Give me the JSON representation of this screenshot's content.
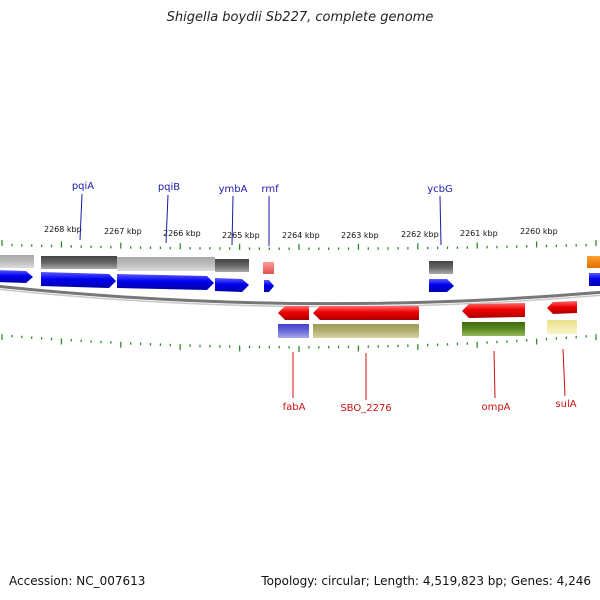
{
  "title": "Shigella boydii Sb227, complete genome",
  "footer": {
    "accession": "Accession: NC_007613",
    "summary": "Topology: circular; Length: 4,519,823 bp; Genes: 4,246"
  },
  "colors": {
    "cds_blue": "#0000ee",
    "cds_red": "#ee0000",
    "label_blue": "#1a1aaa",
    "label_red": "#cc1111",
    "tick_green": "#2e8b2e",
    "backbone": "#777777"
  },
  "scale": {
    "labels": [
      "2268 kbp",
      "2267 kbp",
      "2266 kbp",
      "2265 kbp",
      "2264 kbp",
      "2263 kbp",
      "2262 kbp",
      "2261 kbp",
      "2260 kbp"
    ]
  },
  "genes_top": [
    {
      "label": "pqiA"
    },
    {
      "label": "pqiB"
    },
    {
      "label": "ymbA"
    },
    {
      "label": "rmf"
    },
    {
      "label": "ycbG"
    }
  ],
  "genes_bottom": [
    {
      "label": "fabA"
    },
    {
      "label": "SBO_2276"
    },
    {
      "label": "ompA"
    },
    {
      "label": "sulA"
    }
  ]
}
